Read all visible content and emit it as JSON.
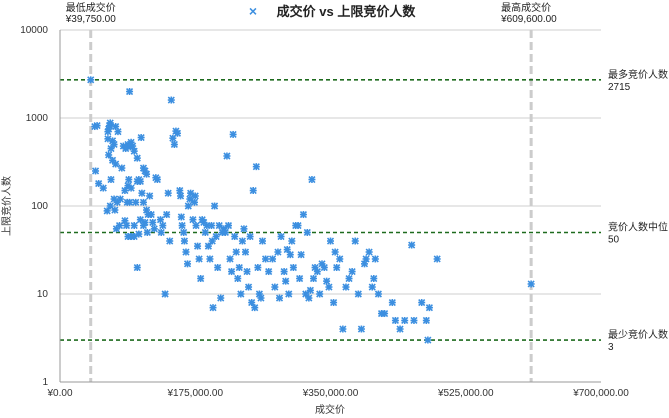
{
  "chart_data": {
    "type": "scatter",
    "title": "成交价 vs 上限竞价人数",
    "xlabel": "成交价",
    "ylabel": "上限竞价人数",
    "xlim": [
      0,
      700000
    ],
    "ylim": [
      1,
      10000
    ],
    "y_scale": "log",
    "grid": true,
    "legend": {
      "marker": "×",
      "position": "top-center"
    },
    "colors": {
      "points": "#3c8fe0",
      "vline": "#cccccc",
      "hline": "#1e6b1e"
    },
    "x_ticks": [
      {
        "value": 0,
        "label": "¥0.00"
      },
      {
        "value": 175000,
        "label": "¥175,000.00"
      },
      {
        "value": 350000,
        "label": "¥350,000.00"
      },
      {
        "value": 525000,
        "label": "¥525,000.00"
      },
      {
        "value": 700000,
        "label": "¥700,000.00"
      }
    ],
    "y_ticks": [
      {
        "value": 1,
        "label": "1"
      },
      {
        "value": 10,
        "label": "10"
      },
      {
        "value": 100,
        "label": "100"
      },
      {
        "value": 1000,
        "label": "1000"
      },
      {
        "value": 10000,
        "label": "10000"
      }
    ],
    "vertical_lines": [
      {
        "x": 39750,
        "label": "最低成交价",
        "value_label": "¥39,750.00",
        "anchor": "start"
      },
      {
        "x": 609600,
        "label": "最高成交价",
        "value_label": "¥609,600.00",
        "anchor": "end"
      }
    ],
    "horizontal_lines": [
      {
        "y": 2715,
        "label": "最多竞价人数",
        "value_label": "2715"
      },
      {
        "y": 50,
        "label": "竞价人数中位",
        "value_label": "50"
      },
      {
        "y": 3,
        "label": "最少竞价人数",
        "value_label": "3"
      }
    ],
    "points": [
      [
        39750,
        2715
      ],
      [
        45000,
        800
      ],
      [
        48000,
        820
      ],
      [
        46000,
        250
      ],
      [
        50000,
        180
      ],
      [
        56000,
        160
      ],
      [
        62000,
        700
      ],
      [
        64000,
        820
      ],
      [
        63000,
        750
      ],
      [
        65000,
        880
      ],
      [
        68000,
        550
      ],
      [
        72000,
        800
      ],
      [
        75000,
        700
      ],
      [
        62000,
        580
      ],
      [
        66000,
        450
      ],
      [
        70000,
        500
      ],
      [
        63000,
        380
      ],
      [
        68000,
        330
      ],
      [
        72000,
        300
      ],
      [
        66000,
        200
      ],
      [
        61000,
        88
      ],
      [
        65000,
        100
      ],
      [
        70000,
        120
      ],
      [
        74000,
        110
      ],
      [
        78000,
        120
      ],
      [
        71000,
        90
      ],
      [
        73000,
        55
      ],
      [
        77000,
        60
      ],
      [
        80000,
        270
      ],
      [
        82000,
        480
      ],
      [
        85000,
        450
      ],
      [
        88000,
        500
      ],
      [
        90000,
        2000
      ],
      [
        91000,
        470
      ],
      [
        94000,
        480
      ],
      [
        92000,
        530
      ],
      [
        96000,
        420
      ],
      [
        100000,
        350
      ],
      [
        105000,
        600
      ],
      [
        108000,
        270
      ],
      [
        110000,
        250
      ],
      [
        112000,
        230
      ],
      [
        84000,
        150
      ],
      [
        88000,
        170
      ],
      [
        89000,
        200
      ],
      [
        92000,
        160
      ],
      [
        87000,
        110
      ],
      [
        90000,
        110
      ],
      [
        84000,
        68
      ],
      [
        86000,
        60
      ],
      [
        88000,
        45
      ],
      [
        92000,
        45
      ],
      [
        96000,
        60
      ],
      [
        98000,
        110
      ],
      [
        100000,
        190
      ],
      [
        102000,
        200
      ],
      [
        104000,
        190
      ],
      [
        106000,
        140
      ],
      [
        108000,
        110
      ],
      [
        112000,
        90
      ],
      [
        114000,
        80
      ],
      [
        96000,
        45
      ],
      [
        100000,
        20
      ],
      [
        102000,
        48
      ],
      [
        104000,
        70
      ],
      [
        108000,
        60
      ],
      [
        110000,
        65
      ],
      [
        113000,
        50
      ],
      [
        116000,
        130
      ],
      [
        118000,
        80
      ],
      [
        120000,
        65
      ],
      [
        122000,
        55
      ],
      [
        124000,
        210
      ],
      [
        126000,
        200
      ],
      [
        130000,
        70
      ],
      [
        131000,
        50
      ],
      [
        133000,
        60
      ],
      [
        136000,
        10
      ],
      [
        138000,
        80
      ],
      [
        140000,
        140
      ],
      [
        142000,
        40
      ],
      [
        144000,
        1600
      ],
      [
        146000,
        590
      ],
      [
        148000,
        500
      ],
      [
        150000,
        710
      ],
      [
        152000,
        670
      ],
      [
        155000,
        150
      ],
      [
        156000,
        130
      ],
      [
        157000,
        75
      ],
      [
        158000,
        60
      ],
      [
        160000,
        50
      ],
      [
        161000,
        40
      ],
      [
        163000,
        30
      ],
      [
        165000,
        22
      ],
      [
        166000,
        100
      ],
      [
        168000,
        120
      ],
      [
        169000,
        140
      ],
      [
        172000,
        70
      ],
      [
        174000,
        110
      ],
      [
        175000,
        130
      ],
      [
        176000,
        60
      ],
      [
        178000,
        35
      ],
      [
        180000,
        25
      ],
      [
        182000,
        15
      ],
      [
        184000,
        70
      ],
      [
        186000,
        65
      ],
      [
        188000,
        50
      ],
      [
        190000,
        60
      ],
      [
        192000,
        35
      ],
      [
        194000,
        25
      ],
      [
        196000,
        60
      ],
      [
        197000,
        40
      ],
      [
        198000,
        7
      ],
      [
        200000,
        100
      ],
      [
        202000,
        45
      ],
      [
        204000,
        20
      ],
      [
        206000,
        60
      ],
      [
        208000,
        9
      ],
      [
        210000,
        50
      ],
      [
        212000,
        55
      ],
      [
        214000,
        50
      ],
      [
        216000,
        370
      ],
      [
        218000,
        60
      ],
      [
        220000,
        25
      ],
      [
        222000,
        18
      ],
      [
        224000,
        650
      ],
      [
        226000,
        45
      ],
      [
        228000,
        30
      ],
      [
        230000,
        15
      ],
      [
        232000,
        20
      ],
      [
        234000,
        10
      ],
      [
        236000,
        40
      ],
      [
        238000,
        55
      ],
      [
        240000,
        30
      ],
      [
        242000,
        18
      ],
      [
        244000,
        12
      ],
      [
        246000,
        45
      ],
      [
        248000,
        8
      ],
      [
        250000,
        150
      ],
      [
        252000,
        7
      ],
      [
        254000,
        280
      ],
      [
        256000,
        20
      ],
      [
        258000,
        10
      ],
      [
        260000,
        9
      ],
      [
        262000,
        40
      ],
      [
        266000,
        25
      ],
      [
        270000,
        18
      ],
      [
        275000,
        25
      ],
      [
        278000,
        12
      ],
      [
        282000,
        30
      ],
      [
        284000,
        9
      ],
      [
        286000,
        45
      ],
      [
        290000,
        18
      ],
      [
        292000,
        14
      ],
      [
        294000,
        32
      ],
      [
        296000,
        10
      ],
      [
        298000,
        28
      ],
      [
        300000,
        40
      ],
      [
        302000,
        20
      ],
      [
        305000,
        60
      ],
      [
        308000,
        60
      ],
      [
        310000,
        15
      ],
      [
        312000,
        28
      ],
      [
        315000,
        80
      ],
      [
        318000,
        10
      ],
      [
        320000,
        50
      ],
      [
        322000,
        9
      ],
      [
        324000,
        11
      ],
      [
        326000,
        200
      ],
      [
        328000,
        15
      ],
      [
        330000,
        20
      ],
      [
        333000,
        18
      ],
      [
        336000,
        10
      ],
      [
        339000,
        22
      ],
      [
        342000,
        20
      ],
      [
        345000,
        14
      ],
      [
        348000,
        12
      ],
      [
        350000,
        40
      ],
      [
        354000,
        8
      ],
      [
        356000,
        30
      ],
      [
        358000,
        20
      ],
      [
        362000,
        25
      ],
      [
        366000,
        4
      ],
      [
        370000,
        12
      ],
      [
        374000,
        15
      ],
      [
        378000,
        18
      ],
      [
        382000,
        40
      ],
      [
        386000,
        10
      ],
      [
        390000,
        4
      ],
      [
        394000,
        22
      ],
      [
        396000,
        25
      ],
      [
        400000,
        30
      ],
      [
        404000,
        12
      ],
      [
        406000,
        15
      ],
      [
        408000,
        25
      ],
      [
        412000,
        10
      ],
      [
        416000,
        6
      ],
      [
        420000,
        6
      ],
      [
        430000,
        8
      ],
      [
        434000,
        5
      ],
      [
        440000,
        4
      ],
      [
        446000,
        5
      ],
      [
        455000,
        36
      ],
      [
        458000,
        5
      ],
      [
        468000,
        8
      ],
      [
        474000,
        5
      ],
      [
        476000,
        3
      ],
      [
        478000,
        7
      ],
      [
        488000,
        25
      ],
      [
        609600,
        13
      ]
    ]
  }
}
